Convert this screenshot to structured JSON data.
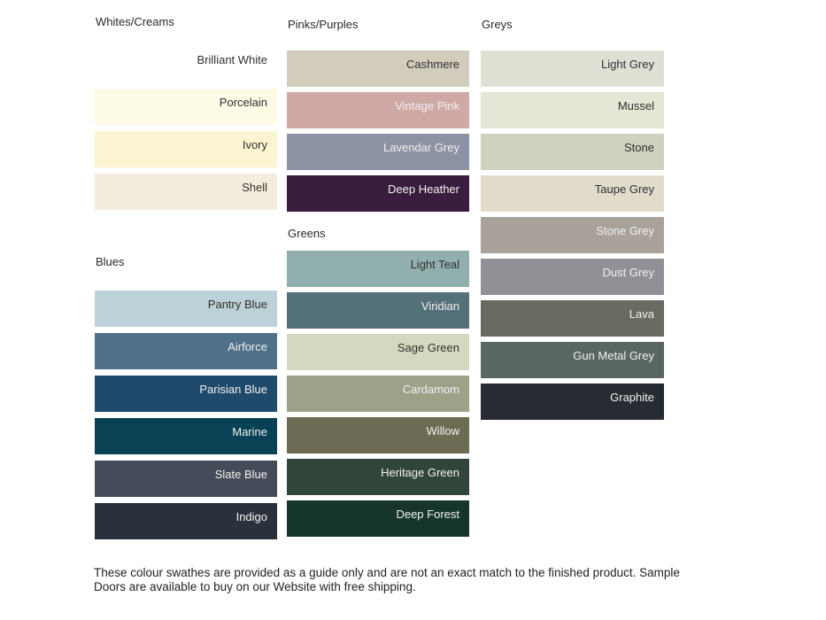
{
  "page": {
    "background": "#ffffff"
  },
  "palette": {
    "label_colors": {
      "dark": "#303030",
      "light": "#f2f1ef"
    },
    "columns": [
      {
        "groups": [
          {
            "title": "Whites/Creams",
            "swatches": [
              {
                "name": "Brilliant White",
                "color": "#ffffff",
                "text": "dark"
              },
              {
                "name": "Porcelain",
                "color": "#fdfae6",
                "text": "dark"
              },
              {
                "name": "Ivory",
                "color": "#faf4d2",
                "text": "dark"
              },
              {
                "name": "Shell",
                "color": "#f5eddc",
                "text": "dark"
              }
            ]
          },
          {
            "title": "Blues",
            "swatches": [
              {
                "name": "Pantry Blue",
                "color": "#bdd2d8",
                "text": "dark"
              },
              {
                "name": "Airforce",
                "color": "#4e7089",
                "text": "light"
              },
              {
                "name": "Parisian Blue",
                "color": "#1e4a6d",
                "text": "light"
              },
              {
                "name": "Marine",
                "color": "#084254",
                "text": "light"
              },
              {
                "name": "Slate Blue",
                "color": "#454b59",
                "text": "light"
              },
              {
                "name": "Indigo",
                "color": "#2b313c",
                "text": "light"
              }
            ]
          }
        ]
      },
      {
        "groups": [
          {
            "title": "Pinks/Purples",
            "swatches": [
              {
                "name": "Cashmere",
                "color": "#d2ccbc",
                "text": "dark"
              },
              {
                "name": "Vintage Pink",
                "color": "#d0a9a7",
                "text": "light"
              },
              {
                "name": "Lavendar Grey",
                "color": "#8d92a5",
                "text": "light"
              },
              {
                "name": "Deep Heather",
                "color": "#3a1c3f",
                "text": "light"
              }
            ]
          },
          {
            "title": "Greens",
            "swatches": [
              {
                "name": "Light Teal",
                "color": "#90afad",
                "text": "dark"
              },
              {
                "name": "Viridian",
                "color": "#547179",
                "text": "light"
              },
              {
                "name": "Sage Green",
                "color": "#d3d9c1",
                "text": "dark"
              },
              {
                "name": "Cardamom",
                "color": "#9ba287",
                "text": "light"
              },
              {
                "name": "Willow",
                "color": "#6e6b55",
                "text": "light"
              },
              {
                "name": "Heritage Green",
                "color": "#32453a",
                "text": "light"
              },
              {
                "name": "Deep Forest",
                "color": "#16362c",
                "text": "light"
              }
            ]
          }
        ]
      },
      {
        "groups": [
          {
            "title": "Greys",
            "swatches": [
              {
                "name": "Light Grey",
                "color": "#dfe0d3",
                "text": "dark"
              },
              {
                "name": "Mussel",
                "color": "#e4e6d6",
                "text": "dark"
              },
              {
                "name": "Stone",
                "color": "#d0d2c0",
                "text": "dark"
              },
              {
                "name": "Taupe Grey",
                "color": "#e1dbcb",
                "text": "dark"
              },
              {
                "name": "Stone Grey",
                "color": "#a8a29a",
                "text": "light"
              },
              {
                "name": "Dust Grey",
                "color": "#8f9197",
                "text": "light"
              },
              {
                "name": "Lava",
                "color": "#6b6a61",
                "text": "light"
              },
              {
                "name": "Gun Metal Grey",
                "color": "#596762",
                "text": "light"
              },
              {
                "name": "Graphite",
                "color": "#262c32",
                "text": "light"
              }
            ]
          }
        ]
      }
    ]
  },
  "footer": {
    "line1": "These colour swathes are provided as a guide only and are not an exact match to the finished product.  Sample",
    "line2": "Doors are available to buy on our Website with free shipping."
  }
}
